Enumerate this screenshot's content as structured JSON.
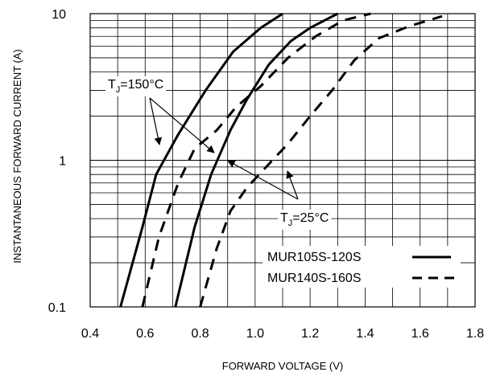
{
  "chart_data": {
    "type": "line",
    "title": "",
    "xlabel": "FORWARD VOLTAGE (V)",
    "ylabel": "INSTANTANEOUS FORWARD CURRENT (A)",
    "x_scale": "linear",
    "y_scale": "log",
    "xlim": [
      0.4,
      1.8
    ],
    "ylim": [
      0.1,
      10
    ],
    "x_ticks": [
      "0.4",
      "0.6",
      "0.8",
      "1.0",
      "1.2",
      "1.4",
      "1.6",
      "1.8"
    ],
    "y_ticks": [
      "0.1",
      "1",
      "10"
    ],
    "grid": true,
    "legend": {
      "placement": "bottom-right",
      "entries": [
        {
          "label": "MUR105S-120S",
          "style": "solid"
        },
        {
          "label": "MUR140S-160S",
          "style": "dashed"
        }
      ]
    },
    "annotations": [
      {
        "id": "tj150",
        "text": "T",
        "sub": "J",
        "rest": "=150°C"
      },
      {
        "id": "tj25",
        "text": "T",
        "sub": "J",
        "rest": "=25°C"
      }
    ],
    "series": [
      {
        "name": "MUR105S-120S",
        "condition": "TJ=150°C",
        "style": "solid",
        "points": [
          [
            0.51,
            0.1
          ],
          [
            0.59,
            0.35
          ],
          [
            0.64,
            0.8
          ],
          [
            0.72,
            1.5
          ],
          [
            0.82,
            3.0
          ],
          [
            0.92,
            5.5
          ],
          [
            1.02,
            8.0
          ],
          [
            1.1,
            10.0
          ]
        ]
      },
      {
        "name": "MUR105S-120S",
        "condition": "TJ=25°C",
        "style": "solid",
        "points": [
          [
            0.71,
            0.1
          ],
          [
            0.78,
            0.35
          ],
          [
            0.84,
            0.8
          ],
          [
            0.91,
            1.6
          ],
          [
            0.97,
            2.6
          ],
          [
            1.05,
            4.5
          ],
          [
            1.13,
            6.5
          ],
          [
            1.2,
            8.0
          ],
          [
            1.3,
            10.0
          ]
        ]
      },
      {
        "name": "MUR140S-160S",
        "condition": "TJ=150°C",
        "style": "dashed",
        "points": [
          [
            0.59,
            0.1
          ],
          [
            0.65,
            0.3
          ],
          [
            0.72,
            0.7
          ],
          [
            0.78,
            1.2
          ],
          [
            0.86,
            1.6
          ],
          [
            0.93,
            2.3
          ],
          [
            1.02,
            3.2
          ],
          [
            1.12,
            5.0
          ],
          [
            1.22,
            7.0
          ],
          [
            1.32,
            9.0
          ],
          [
            1.42,
            10.0
          ]
        ]
      },
      {
        "name": "MUR140S-160S",
        "condition": "TJ=25°C",
        "style": "dashed",
        "points": [
          [
            0.8,
            0.1
          ],
          [
            0.86,
            0.25
          ],
          [
            0.91,
            0.45
          ],
          [
            0.97,
            0.65
          ],
          [
            1.04,
            0.9
          ],
          [
            1.12,
            1.3
          ],
          [
            1.2,
            2.0
          ],
          [
            1.28,
            3.0
          ],
          [
            1.36,
            4.8
          ],
          [
            1.45,
            6.8
          ],
          [
            1.56,
            8.2
          ],
          [
            1.68,
            9.6
          ]
        ]
      }
    ]
  }
}
